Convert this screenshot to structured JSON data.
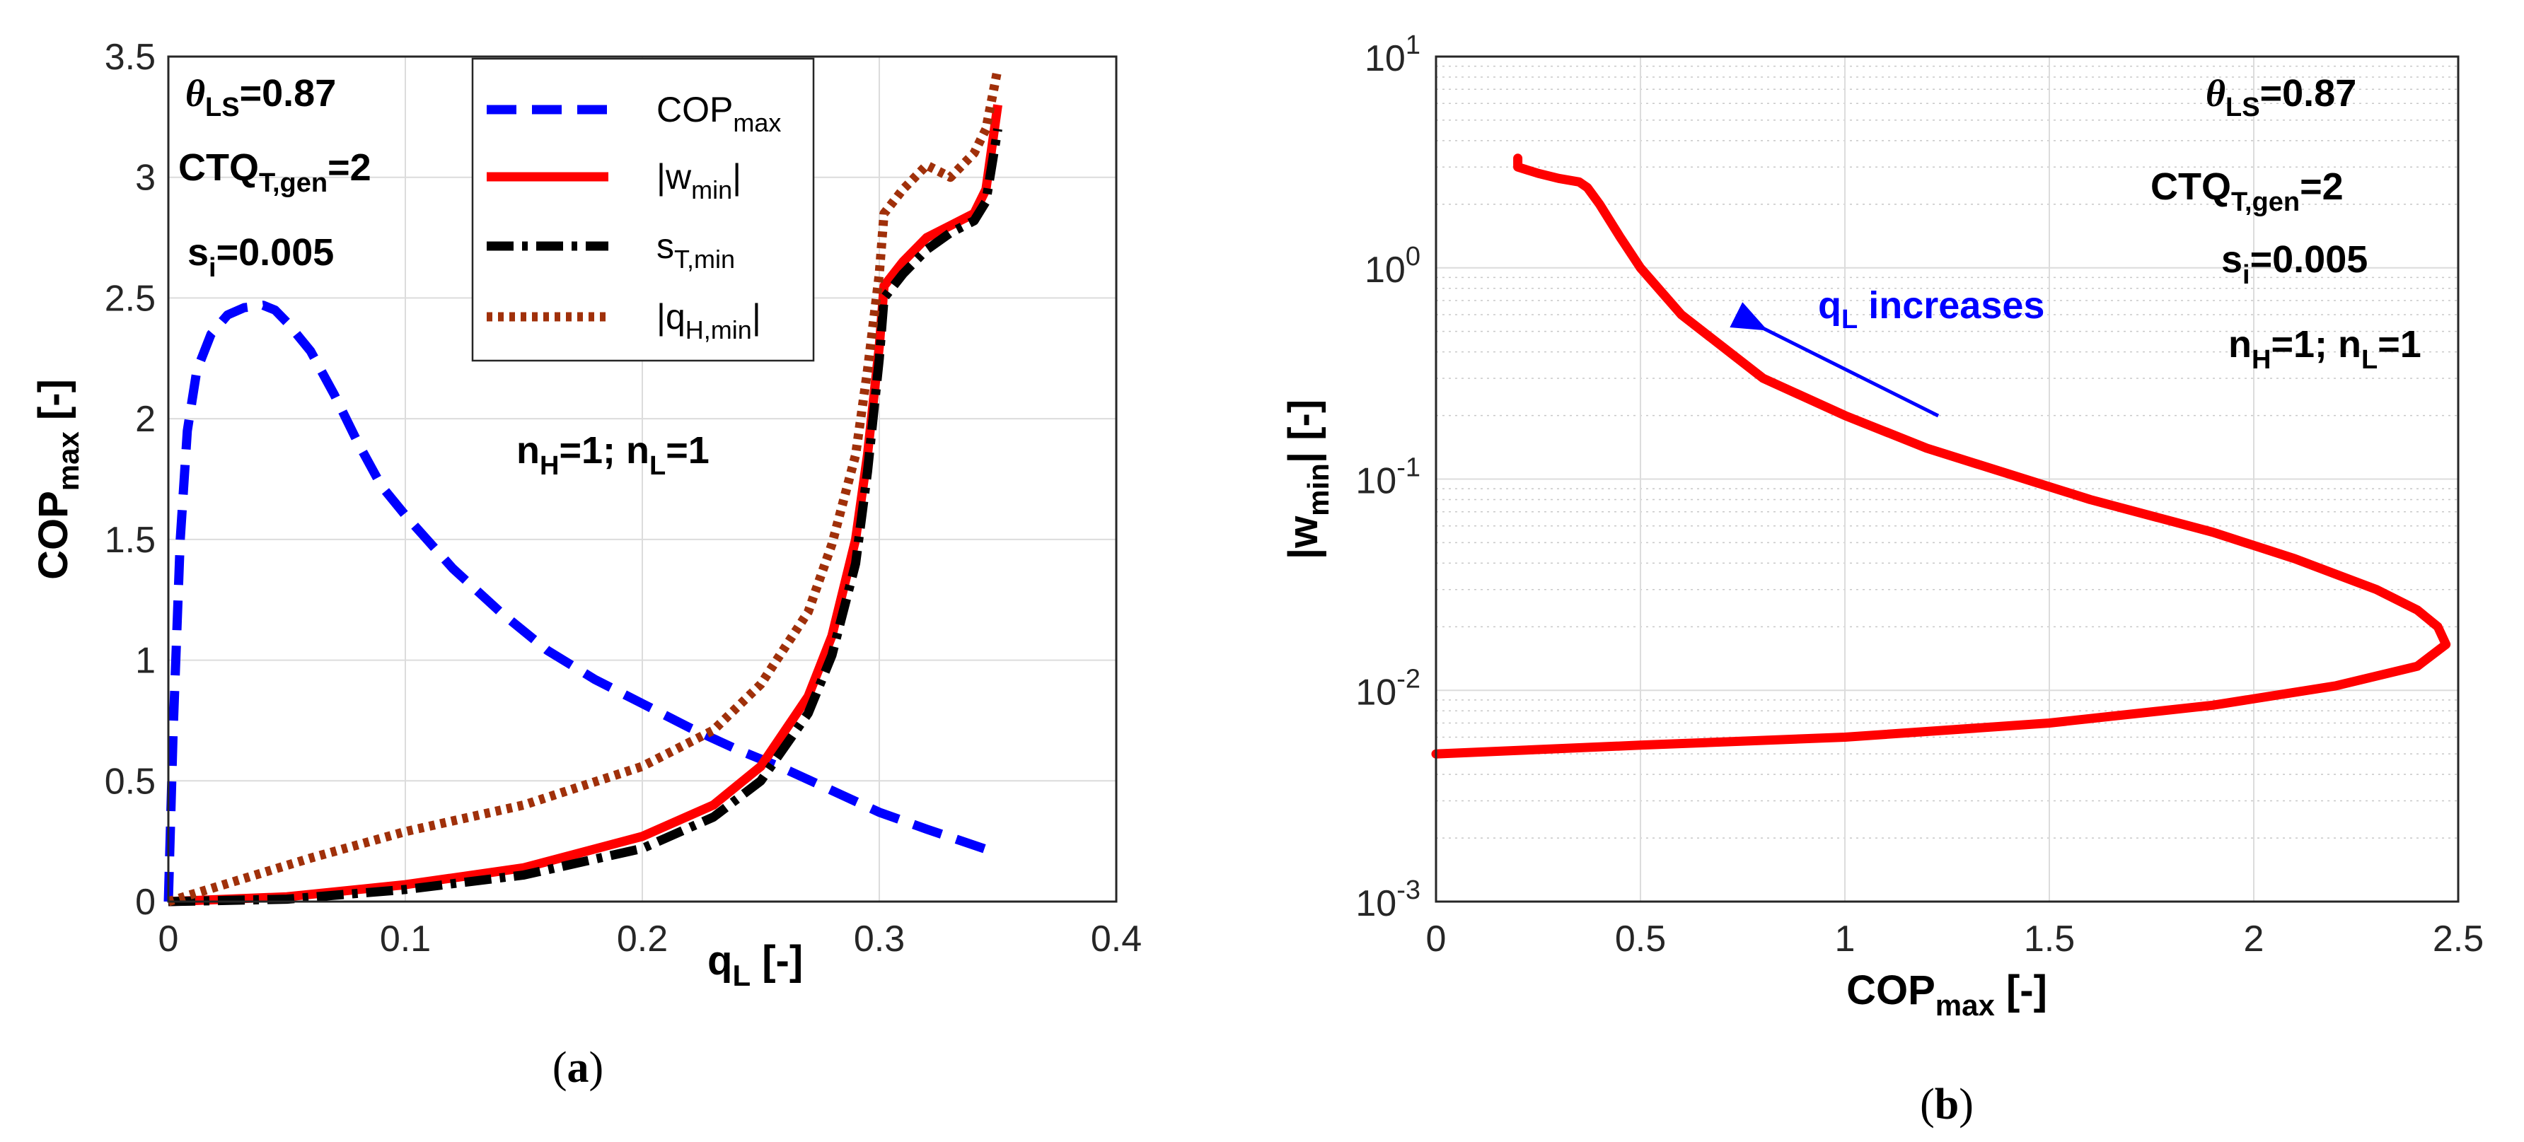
{
  "chart_data": [
    {
      "panel": "(a)",
      "type": "line",
      "xlabel": "q_L [-]",
      "ylabel": "COP_max [-]",
      "xlim": [
        0,
        0.4
      ],
      "ylim": [
        0,
        3.5
      ],
      "xticks": [
        "0",
        "0.1",
        "0.2",
        "0.3",
        "0.4"
      ],
      "yticks": [
        "0",
        "0.5",
        "1",
        "1.5",
        "2",
        "2.5",
        "3",
        "3.5"
      ],
      "grid": true,
      "legend_position": "top-center",
      "annotations": {
        "theta": "θ_LS=0.87",
        "ctq": "CTQ_T,gen=2",
        "si": "s_i=0.005",
        "n": "n_H=1; n_L=1"
      },
      "series": [
        {
          "name": "COP_max",
          "style": "dashed",
          "color": "#0000FF",
          "x": [
            0,
            0.002,
            0.005,
            0.008,
            0.012,
            0.018,
            0.025,
            0.032,
            0.04,
            0.045,
            0.05,
            0.06,
            0.07,
            0.08,
            0.09,
            0.1,
            0.12,
            0.14,
            0.16,
            0.18,
            0.2,
            0.22,
            0.24,
            0.26,
            0.28,
            0.3,
            0.32,
            0.35
          ],
          "y": [
            0,
            0.7,
            1.5,
            1.95,
            2.2,
            2.35,
            2.43,
            2.46,
            2.47,
            2.45,
            2.4,
            2.28,
            2.1,
            1.9,
            1.72,
            1.6,
            1.38,
            1.2,
            1.04,
            0.92,
            0.82,
            0.72,
            0.63,
            0.55,
            0.46,
            0.37,
            0.3,
            0.2
          ]
        },
        {
          "name": "|w_min|",
          "style": "solid",
          "color": "#FF0000",
          "x": [
            0,
            0.05,
            0.1,
            0.15,
            0.2,
            0.23,
            0.25,
            0.27,
            0.28,
            0.29,
            0.295,
            0.3,
            0.302,
            0.31,
            0.32,
            0.33,
            0.34,
            0.345,
            0.35
          ],
          "y": [
            0,
            0.02,
            0.07,
            0.14,
            0.27,
            0.4,
            0.56,
            0.85,
            1.1,
            1.5,
            1.85,
            2.3,
            2.55,
            2.65,
            2.75,
            2.8,
            2.85,
            2.95,
            3.3
          ]
        },
        {
          "name": "s_T,min",
          "style": "dashdot",
          "color": "#000000",
          "x": [
            0,
            0.05,
            0.1,
            0.15,
            0.2,
            0.23,
            0.25,
            0.27,
            0.28,
            0.29,
            0.295,
            0.3,
            0.302,
            0.31,
            0.32,
            0.33,
            0.34,
            0.345,
            0.35
          ],
          "y": [
            0,
            0.01,
            0.05,
            0.11,
            0.22,
            0.35,
            0.5,
            0.78,
            1.02,
            1.4,
            1.78,
            2.25,
            2.5,
            2.6,
            2.7,
            2.77,
            2.82,
            2.9,
            3.2
          ]
        },
        {
          "name": "|q_H,min|",
          "style": "dotted",
          "color": "#A0300A",
          "x": [
            0,
            0.03,
            0.06,
            0.1,
            0.15,
            0.2,
            0.23,
            0.25,
            0.27,
            0.28,
            0.29,
            0.295,
            0.3,
            0.302,
            0.31,
            0.32,
            0.33,
            0.34,
            0.345,
            0.35
          ],
          "y": [
            0,
            0.09,
            0.18,
            0.29,
            0.4,
            0.56,
            0.71,
            0.9,
            1.2,
            1.48,
            1.85,
            2.2,
            2.6,
            2.85,
            2.95,
            3.05,
            3.0,
            3.1,
            3.2,
            3.45
          ]
        }
      ]
    },
    {
      "panel": "(b)",
      "type": "line",
      "xlabel": "COP_max [-]",
      "ylabel": "|w_min| [-]",
      "xscale": "linear",
      "yscale": "log",
      "xlim": [
        0,
        2.5
      ],
      "ylim": [
        0.001,
        10
      ],
      "xticks": [
        "0",
        "0.5",
        "1",
        "1.5",
        "2",
        "2.5"
      ],
      "yticks": [
        "10^-3",
        "10^-2",
        "10^-1",
        "10^0",
        "10^1"
      ],
      "grid": true,
      "annotations": {
        "theta": "θ_LS=0.87",
        "ctq": "CTQ_T,gen=2",
        "si": "s_i=0.005",
        "n": "n_H=1; n_L=1",
        "arrow": "q_L increases"
      },
      "series": [
        {
          "name": "|w_min|",
          "style": "solid",
          "color": "#FF0000",
          "x": [
            0,
            0.5,
            1.0,
            1.5,
            1.9,
            2.2,
            2.4,
            2.47,
            2.45,
            2.4,
            2.3,
            2.1,
            1.9,
            1.6,
            1.2,
            1.0,
            0.8,
            0.6,
            0.5,
            0.45,
            0.4,
            0.37,
            0.35,
            0.3,
            0.25,
            0.2,
            0.2
          ],
          "y": [
            0.005,
            0.0055,
            0.006,
            0.007,
            0.0085,
            0.0105,
            0.013,
            0.0165,
            0.02,
            0.024,
            0.03,
            0.042,
            0.056,
            0.08,
            0.14,
            0.2,
            0.3,
            0.6,
            1.0,
            1.4,
            2.0,
            2.4,
            2.55,
            2.65,
            2.8,
            3.0,
            3.3
          ]
        }
      ]
    }
  ]
}
